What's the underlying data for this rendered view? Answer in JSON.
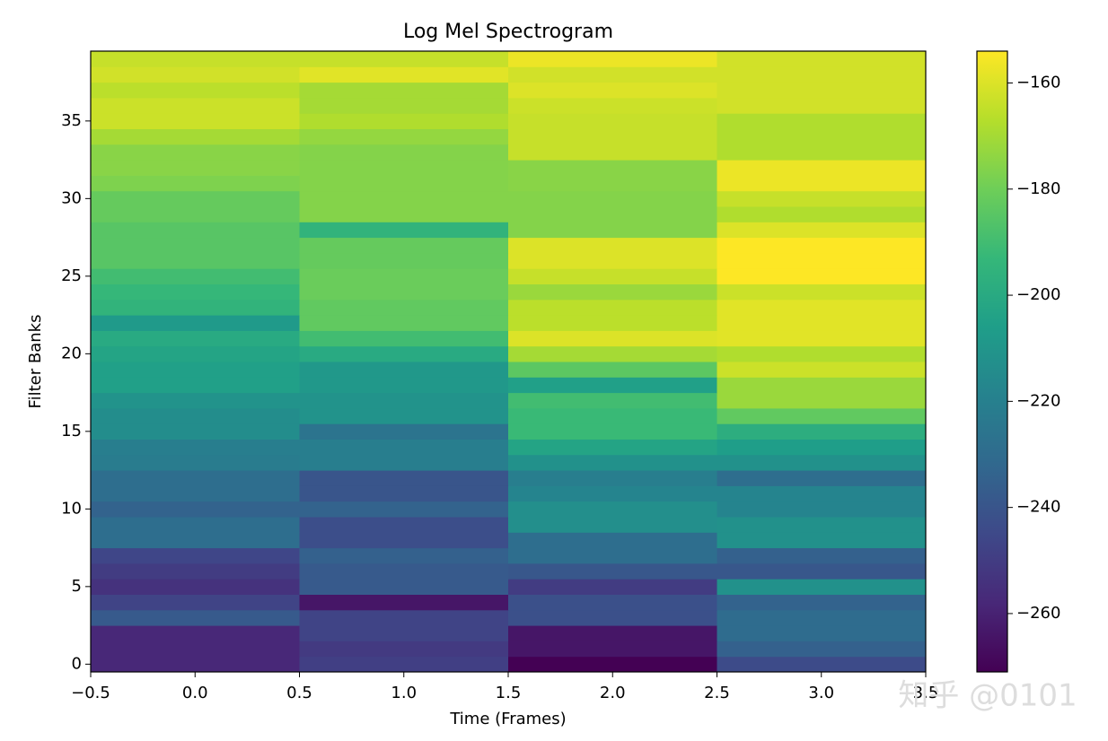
{
  "chart_data": {
    "type": "heatmap",
    "title": "Log Mel Spectrogram",
    "x_label": "Time (Frames)",
    "y_label": "Filter Banks",
    "colormap": "viridis",
    "vlim": [
      -271,
      -154
    ],
    "x": [
      0,
      1,
      2,
      3
    ],
    "y": [
      0,
      1,
      2,
      3,
      4,
      5,
      6,
      7,
      8,
      9,
      10,
      11,
      12,
      13,
      14,
      15,
      16,
      17,
      18,
      19,
      20,
      21,
      22,
      23,
      24,
      25,
      26,
      27,
      28,
      29,
      30,
      31,
      32,
      33,
      34,
      35,
      36,
      37,
      38,
      39
    ],
    "z": [
      [
        -258,
        -249,
        -271,
        -244
      ],
      [
        -258,
        -251,
        -264,
        -235
      ],
      [
        -258,
        -247,
        -264,
        -230
      ],
      [
        -238,
        -247,
        -242,
        -230
      ],
      [
        -247,
        -264,
        -242,
        -234
      ],
      [
        -254,
        -238,
        -250,
        -212
      ],
      [
        -250,
        -238,
        -239,
        -239
      ],
      [
        -246,
        -235,
        -229,
        -235
      ],
      [
        -229,
        -243,
        -229,
        -212
      ],
      [
        -229,
        -243,
        -213,
        -212
      ],
      [
        -234,
        -234,
        -213,
        -218
      ],
      [
        -229,
        -240,
        -218,
        -218
      ],
      [
        -229,
        -240,
        -221,
        -229
      ],
      [
        -222,
        -221,
        -212,
        -212
      ],
      [
        -221,
        -221,
        -203,
        -206
      ],
      [
        -214,
        -226,
        -192,
        -198
      ],
      [
        -214,
        -211,
        -192,
        -183
      ],
      [
        -211,
        -211,
        -190,
        -172
      ],
      [
        -205,
        -209,
        -205,
        -172
      ],
      [
        -205,
        -209,
        -184,
        -163
      ],
      [
        -203,
        -200,
        -170,
        -168
      ],
      [
        -200,
        -190,
        -160,
        -159
      ],
      [
        -208,
        -183,
        -166,
        -159
      ],
      [
        -195,
        -183,
        -166,
        -159
      ],
      [
        -193,
        -181,
        -172,
        -163
      ],
      [
        -190,
        -181,
        -164,
        -154
      ],
      [
        -185,
        -182,
        -160,
        -154
      ],
      [
        -185,
        -182,
        -160,
        -154
      ],
      [
        -185,
        -195,
        -176,
        -160
      ],
      [
        -182,
        -176,
        -176,
        -168
      ],
      [
        -182,
        -176,
        -176,
        -164
      ],
      [
        -177,
        -176,
        -175,
        -157
      ],
      [
        -175,
        -176,
        -175,
        -157
      ],
      [
        -175,
        -176,
        -164,
        -168
      ],
      [
        -170,
        -173,
        -164,
        -168
      ],
      [
        -163,
        -168,
        -164,
        -168
      ],
      [
        -163,
        -170,
        -163,
        -162
      ],
      [
        -166,
        -170,
        -160,
        -162
      ],
      [
        -162,
        -159,
        -162,
        -162
      ],
      [
        -164,
        -164,
        -157,
        -162
      ]
    ],
    "xlim": [
      -0.5,
      3.5
    ],
    "xticks": [
      {
        "value": -0.5,
        "label": "−0.5"
      },
      {
        "value": 0,
        "label": "0.0"
      },
      {
        "value": 0.5,
        "label": "0.5"
      },
      {
        "value": 1,
        "label": "1.0"
      },
      {
        "value": 1.5,
        "label": "1.5"
      },
      {
        "value": 2,
        "label": "2.0"
      },
      {
        "value": 2.5,
        "label": "2.5"
      },
      {
        "value": 3,
        "label": "3.0"
      },
      {
        "value": 3.5,
        "label": "3.5"
      }
    ],
    "ylim": [
      -0.5,
      39.5
    ],
    "yticks": [
      0,
      5,
      10,
      15,
      20,
      25,
      30,
      35
    ],
    "cticks": [
      {
        "value": -160,
        "label": "−160"
      },
      {
        "value": -180,
        "label": "−180"
      },
      {
        "value": -200,
        "label": "−200"
      },
      {
        "value": -220,
        "label": "−220"
      },
      {
        "value": -240,
        "label": "−240"
      },
      {
        "value": -260,
        "label": "−260"
      }
    ],
    "watermark": "知乎 @0101"
  }
}
